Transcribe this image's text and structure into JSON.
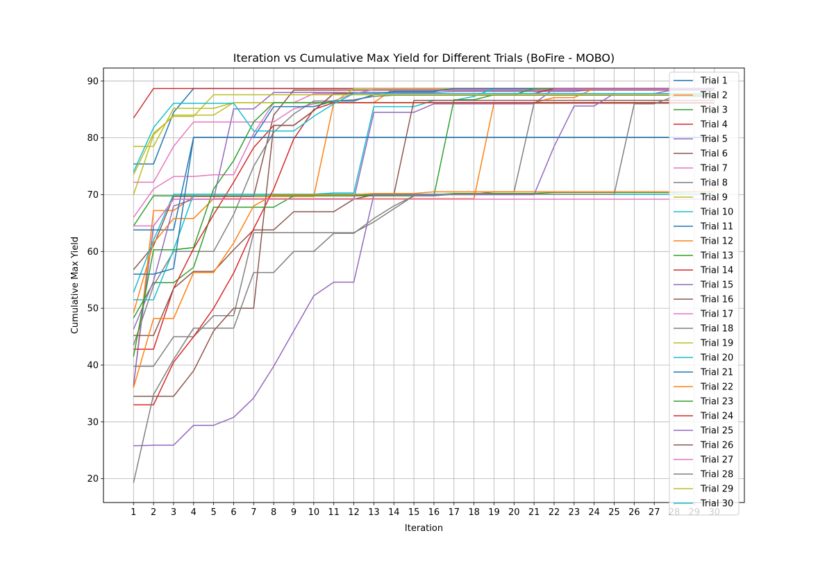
{
  "chart_data": {
    "type": "line",
    "title": "Iteration vs Cumulative Max Yield for Different Trials (BoFire - MOBO)",
    "xlabel": "Iteration",
    "ylabel": "Cumulative Max Yield",
    "xlim": [
      -0.5,
      31.5
    ],
    "ylim": [
      15.8,
      92.3
    ],
    "xticks": [
      1,
      2,
      3,
      4,
      5,
      6,
      7,
      8,
      9,
      10,
      11,
      12,
      13,
      14,
      15,
      16,
      17,
      18,
      19,
      20,
      21,
      22,
      23,
      24,
      25,
      26,
      27,
      28,
      29,
      30
    ],
    "yticks": [
      20,
      30,
      40,
      50,
      60,
      70,
      80,
      90
    ],
    "grid": true,
    "legend_position": "upper-right",
    "x": [
      1,
      2,
      3,
      4,
      5,
      6,
      7,
      8,
      9,
      10,
      11,
      12,
      13,
      14,
      15,
      16,
      17,
      18,
      19,
      20,
      21,
      22,
      23,
      24,
      25,
      26,
      27,
      28,
      29,
      30
    ],
    "series": [
      {
        "name": "Trial 1",
        "color": "#1f77b4",
        "values": [
          75.4,
          75.4,
          84.5,
          88.7,
          88.7,
          88.7,
          88.7,
          88.7,
          88.7,
          88.7,
          88.7,
          88.7,
          88.7,
          88.7,
          88.7,
          88.7,
          88.7,
          88.7,
          88.7,
          88.7,
          88.7,
          88.7,
          88.7,
          88.7,
          88.7,
          88.7,
          88.7,
          88.7,
          88.7,
          88.7
        ]
      },
      {
        "name": "Trial 2",
        "color": "#ff7f0e",
        "values": [
          36.2,
          67.2,
          67.2,
          69.7,
          69.7,
          69.7,
          69.7,
          69.7,
          69.7,
          69.7,
          86.2,
          86.2,
          86.2,
          88.7,
          88.7,
          88.7,
          88.7,
          88.7,
          88.7,
          88.7,
          88.7,
          88.7,
          88.7,
          88.7,
          88.7,
          88.7,
          88.7,
          88.7,
          88.7,
          88.7
        ]
      },
      {
        "name": "Trial 3",
        "color": "#2ca02c",
        "values": [
          64.5,
          69.8,
          69.8,
          69.8,
          69.8,
          69.8,
          69.8,
          69.8,
          69.8,
          69.8,
          69.8,
          69.8,
          70.0,
          70.0,
          70.0,
          70.0,
          70.2,
          70.2,
          70.2,
          70.2,
          70.2,
          70.4,
          70.4,
          70.4,
          70.4,
          70.4,
          70.4,
          70.4,
          70.5,
          70.5
        ]
      },
      {
        "name": "Trial 4",
        "color": "#d62728",
        "values": [
          83.5,
          88.7,
          88.7,
          88.7,
          88.7,
          88.7,
          88.7,
          88.7,
          88.7,
          88.7,
          88.7,
          88.7,
          88.7,
          88.7,
          88.7,
          88.7,
          88.7,
          88.7,
          88.7,
          88.7,
          88.7,
          88.7,
          88.7,
          88.7,
          88.7,
          88.7,
          88.7,
          88.7,
          88.7,
          88.7
        ]
      },
      {
        "name": "Trial 5",
        "color": "#9467bd",
        "values": [
          36.5,
          64.5,
          69.2,
          69.2,
          69.2,
          85.1,
          85.1,
          88.0,
          88.0,
          88.0,
          88.0,
          88.0,
          88.0,
          88.0,
          88.0,
          88.0,
          88.2,
          88.2,
          88.2,
          88.2,
          88.2,
          88.2,
          88.2,
          88.5,
          88.5,
          88.5,
          88.5,
          88.5,
          88.5,
          88.5
        ]
      },
      {
        "name": "Trial 6",
        "color": "#8c564b",
        "values": [
          56.8,
          61.0,
          69.7,
          69.7,
          69.7,
          69.7,
          69.7,
          84.0,
          88.4,
          88.4,
          88.4,
          88.4,
          88.4,
          88.4,
          88.4,
          88.4,
          88.4,
          88.4,
          88.4,
          88.4,
          88.4,
          88.4,
          88.4,
          88.4,
          88.4,
          88.4,
          88.4,
          88.4,
          88.4,
          88.4
        ]
      },
      {
        "name": "Trial 7",
        "color": "#e377c2",
        "values": [
          72.2,
          72.2,
          78.5,
          82.8,
          82.8,
          82.8,
          82.8,
          82.8,
          85.1,
          86.0,
          86.5,
          87.8,
          88.5,
          88.5,
          88.5,
          88.5,
          88.5,
          88.5,
          88.5,
          88.5,
          88.5,
          88.5,
          88.5,
          88.5,
          88.5,
          88.5,
          88.5,
          88.5,
          88.5,
          88.5
        ]
      },
      {
        "name": "Trial 8",
        "color": "#7f7f7f",
        "values": [
          43.5,
          54.0,
          60.0,
          60.0,
          60.0,
          66.5,
          75.0,
          81.0,
          84.2,
          86.5,
          86.5,
          86.7,
          87.3,
          87.5,
          87.5,
          87.5,
          87.5,
          87.5,
          87.5,
          87.5,
          87.5,
          87.5,
          87.5,
          87.5,
          87.5,
          87.5,
          87.5,
          87.5,
          87.5,
          87.5
        ]
      },
      {
        "name": "Trial 9",
        "color": "#bcbd22",
        "values": [
          78.5,
          78.5,
          85.2,
          85.2,
          85.2,
          86.2,
          86.2,
          86.2,
          86.2,
          86.2,
          86.2,
          88.7,
          88.7,
          88.7,
          88.7,
          88.7,
          88.7,
          88.7,
          88.7,
          88.7,
          88.7,
          88.7,
          88.7,
          88.7,
          88.7,
          88.7,
          88.7,
          88.7,
          88.7,
          88.7
        ]
      },
      {
        "name": "Trial 10",
        "color": "#17becf",
        "values": [
          52.8,
          62.0,
          70.1,
          70.1,
          70.1,
          70.1,
          70.1,
          70.1,
          70.1,
          70.1,
          70.3,
          70.3,
          85.5,
          85.5,
          85.5,
          86.6,
          86.6,
          87.3,
          88.7,
          88.7,
          88.7,
          88.7,
          88.7,
          88.7,
          88.7,
          88.7,
          88.7,
          88.7,
          88.7,
          88.7
        ]
      },
      {
        "name": "Trial 11",
        "color": "#1f77b4",
        "values": [
          63.8,
          63.8,
          63.8,
          80.1,
          80.1,
          80.1,
          80.1,
          85.5,
          85.5,
          85.5,
          86.5,
          86.5,
          87.6,
          88.2,
          88.2,
          88.2,
          88.7,
          88.7,
          88.7,
          88.7,
          88.7,
          88.7,
          88.7,
          88.7,
          88.7,
          88.7,
          88.7,
          88.7,
          88.7,
          88.7
        ]
      },
      {
        "name": "Trial 12",
        "color": "#ff7f0e",
        "values": [
          49.2,
          61.5,
          65.8,
          65.8,
          69.3,
          69.3,
          69.3,
          69.3,
          69.3,
          69.3,
          69.3,
          69.3,
          69.3,
          69.3,
          69.3,
          69.3,
          69.3,
          69.3,
          86.2,
          86.2,
          86.2,
          87.1,
          87.1,
          88.7,
          88.7,
          88.7,
          88.7,
          88.7,
          88.7,
          88.7
        ]
      },
      {
        "name": "Trial 13",
        "color": "#2ca02c",
        "values": [
          48.3,
          54.5,
          54.5,
          57.2,
          67.8,
          67.8,
          67.8,
          67.8,
          69.8,
          69.8,
          69.8,
          69.8,
          69.8,
          69.8,
          69.8,
          69.8,
          86.7,
          86.7,
          87.6,
          87.6,
          88.7,
          88.7,
          88.7,
          88.7,
          88.7,
          88.7,
          88.7,
          88.7,
          88.7,
          88.7
        ]
      },
      {
        "name": "Trial 14",
        "color": "#d62728",
        "values": [
          42.8,
          42.8,
          53.5,
          60.5,
          66.5,
          72.2,
          78.3,
          82.2,
          82.2,
          84.8,
          87.8,
          87.8,
          87.8,
          87.8,
          87.8,
          87.8,
          87.8,
          87.8,
          87.8,
          87.8,
          87.8,
          88.7,
          88.7,
          88.7,
          88.7,
          88.7,
          88.7,
          88.7,
          88.7,
          88.7
        ]
      },
      {
        "name": "Trial 15",
        "color": "#9467bd",
        "values": [
          46.3,
          54.8,
          68.0,
          69.2,
          69.2,
          69.2,
          69.2,
          69.2,
          69.2,
          69.2,
          69.2,
          69.2,
          84.5,
          84.5,
          84.5,
          86.0,
          86.0,
          86.0,
          86.0,
          86.0,
          86.0,
          88.7,
          88.7,
          88.7,
          88.7,
          88.7,
          88.7,
          88.7,
          88.7,
          88.7
        ]
      },
      {
        "name": "Trial 16",
        "color": "#8c564b",
        "values": [
          45.2,
          45.2,
          53.5,
          56.5,
          56.5,
          60.3,
          63.8,
          63.8,
          67.0,
          67.0,
          67.0,
          69.2,
          70.0,
          70.0,
          86.6,
          86.6,
          86.6,
          86.6,
          86.6,
          86.6,
          86.6,
          86.6,
          86.6,
          86.6,
          86.6,
          86.6,
          86.6,
          86.6,
          86.6,
          86.6
        ]
      },
      {
        "name": "Trial 17",
        "color": "#e377c2",
        "values": [
          66.0,
          71.0,
          73.2,
          73.2,
          73.5,
          73.5,
          80.8,
          86.2,
          86.2,
          87.8,
          87.8,
          87.8,
          87.8,
          87.8,
          87.8,
          87.8,
          87.8,
          87.8,
          87.8,
          87.8,
          87.8,
          87.8,
          87.8,
          87.8,
          87.8,
          87.8,
          87.8,
          87.8,
          87.8,
          87.8
        ]
      },
      {
        "name": "Trial 18",
        "color": "#7f7f7f",
        "values": [
          39.8,
          39.8,
          45.0,
          45.0,
          48.7,
          48.7,
          63.3,
          63.3,
          63.3,
          63.3,
          63.3,
          63.3,
          65.2,
          67.5,
          69.8,
          69.8,
          70.1,
          70.1,
          70.5,
          70.5,
          86.1,
          86.1,
          86.1,
          86.1,
          86.1,
          86.1,
          86.1,
          86.1,
          86.1,
          86.1
        ]
      },
      {
        "name": "Trial 19",
        "color": "#bcbd22",
        "values": [
          70.0,
          80.5,
          84.0,
          84.0,
          84.0,
          86.2,
          86.2,
          86.2,
          86.2,
          86.2,
          86.2,
          86.2,
          86.2,
          86.2,
          86.2,
          86.2,
          86.2,
          86.2,
          86.2,
          86.2,
          86.2,
          86.2,
          86.2,
          86.2,
          86.2,
          86.2,
          86.2,
          86.2,
          86.2,
          86.2
        ]
      },
      {
        "name": "Trial 20",
        "color": "#17becf",
        "values": [
          51.5,
          51.5,
          60.3,
          70.1,
          70.1,
          70.1,
          70.1,
          70.1,
          70.1,
          70.1,
          70.1,
          70.1,
          70.1,
          70.1,
          70.1,
          70.1,
          70.1,
          70.1,
          70.1,
          70.1,
          70.1,
          70.1,
          70.1,
          70.1,
          70.1,
          70.1,
          70.1,
          70.1,
          70.1,
          70.1
        ]
      },
      {
        "name": "Trial 21",
        "color": "#1f77b4",
        "values": [
          56.0,
          56.0,
          57.0,
          80.1,
          80.1,
          80.1,
          80.1,
          80.1,
          80.1,
          80.1,
          80.1,
          80.1,
          80.1,
          80.1,
          80.1,
          80.1,
          80.1,
          80.1,
          80.1,
          80.1,
          80.1,
          80.1,
          80.1,
          80.1,
          80.1,
          80.1,
          80.1,
          80.1,
          80.1,
          80.1
        ]
      },
      {
        "name": "Trial 22",
        "color": "#ff7f0e",
        "values": [
          36.0,
          48.2,
          48.2,
          56.3,
          56.3,
          61.5,
          68.0,
          70.0,
          70.0,
          70.0,
          70.0,
          70.0,
          70.2,
          70.2,
          70.2,
          70.5,
          70.5,
          70.5,
          70.5,
          70.5,
          70.5,
          70.5,
          70.5,
          70.5,
          70.5,
          70.5,
          70.5,
          70.5,
          70.5,
          70.5
        ]
      },
      {
        "name": "Trial 23",
        "color": "#2ca02c",
        "values": [
          41.5,
          60.3,
          60.3,
          60.7,
          71.0,
          76.0,
          82.8,
          86.2,
          86.2,
          86.2,
          86.2,
          86.2,
          86.2,
          86.2,
          86.2,
          86.2,
          86.2,
          86.2,
          86.2,
          86.2,
          86.2,
          86.2,
          86.2,
          86.2,
          86.2,
          86.2,
          86.2,
          86.2,
          86.2,
          86.2
        ]
      },
      {
        "name": "Trial 24",
        "color": "#d62728",
        "values": [
          33.0,
          33.0,
          40.5,
          45.0,
          50.0,
          56.2,
          64.0,
          71.0,
          79.8,
          85.0,
          86.2,
          86.2,
          86.2,
          86.2,
          86.2,
          86.2,
          86.2,
          86.2,
          86.2,
          86.2,
          86.2,
          86.2,
          86.2,
          86.2,
          86.2,
          86.2,
          86.2,
          86.2,
          86.2,
          86.2
        ]
      },
      {
        "name": "Trial 25",
        "color": "#9467bd",
        "values": [
          25.8,
          25.9,
          25.9,
          29.4,
          29.4,
          30.8,
          34.2,
          39.8,
          46.0,
          52.2,
          54.6,
          54.6,
          70.0,
          70.0,
          70.0,
          70.0,
          70.0,
          70.0,
          70.0,
          70.0,
          70.0,
          78.5,
          85.6,
          85.6,
          87.8,
          87.8,
          87.8,
          88.5,
          88.5,
          88.5
        ]
      },
      {
        "name": "Trial 26",
        "color": "#8c564b",
        "values": [
          34.5,
          34.5,
          34.5,
          39.0,
          46.0,
          50.0,
          50.0,
          82.2,
          82.2,
          84.8,
          87.8,
          87.8,
          87.8,
          87.8,
          87.8,
          87.8,
          87.8,
          87.8,
          87.8,
          87.8,
          87.8,
          87.8,
          87.8,
          87.8,
          87.8,
          87.8,
          87.8,
          87.8,
          87.8,
          87.8
        ]
      },
      {
        "name": "Trial 27",
        "color": "#e377c2",
        "values": [
          64.5,
          64.5,
          69.2,
          69.2,
          69.2,
          69.2,
          69.2,
          69.2,
          69.2,
          69.2,
          69.2,
          69.2,
          69.2,
          69.2,
          69.2,
          69.2,
          69.2,
          69.2,
          69.2,
          69.2,
          69.2,
          69.2,
          69.2,
          69.2,
          69.2,
          69.2,
          69.2,
          69.2,
          69.2,
          69.2
        ]
      },
      {
        "name": "Trial 28",
        "color": "#7f7f7f",
        "values": [
          19.3,
          34.8,
          41.0,
          46.5,
          46.5,
          46.5,
          56.3,
          56.3,
          60.0,
          60.0,
          63.2,
          63.2,
          65.8,
          68.0,
          69.8,
          69.8,
          70.1,
          70.1,
          70.1,
          70.1,
          70.1,
          70.1,
          70.1,
          70.1,
          70.1,
          86.0,
          86.0,
          87.3,
          87.3,
          87.3
        ]
      },
      {
        "name": "Trial 29",
        "color": "#bcbd22",
        "values": [
          73.5,
          80.8,
          83.8,
          83.8,
          87.6,
          87.6,
          87.6,
          87.6,
          87.6,
          87.6,
          87.6,
          87.6,
          87.6,
          87.6,
          87.6,
          87.6,
          87.6,
          87.6,
          87.6,
          87.6,
          87.6,
          87.6,
          87.6,
          87.6,
          87.6,
          87.6,
          87.6,
          87.6,
          87.6,
          87.6
        ]
      },
      {
        "name": "Trial 30",
        "color": "#17becf",
        "values": [
          74.0,
          81.8,
          86.1,
          86.1,
          86.1,
          86.1,
          81.2,
          81.2,
          81.2,
          83.8,
          86.0,
          87.8,
          87.8,
          87.8,
          87.8,
          87.8,
          87.8,
          87.8,
          87.8,
          87.8,
          87.8,
          87.8,
          87.8,
          87.8,
          87.8,
          87.8,
          87.8,
          87.8,
          87.8,
          87.8
        ]
      }
    ]
  }
}
